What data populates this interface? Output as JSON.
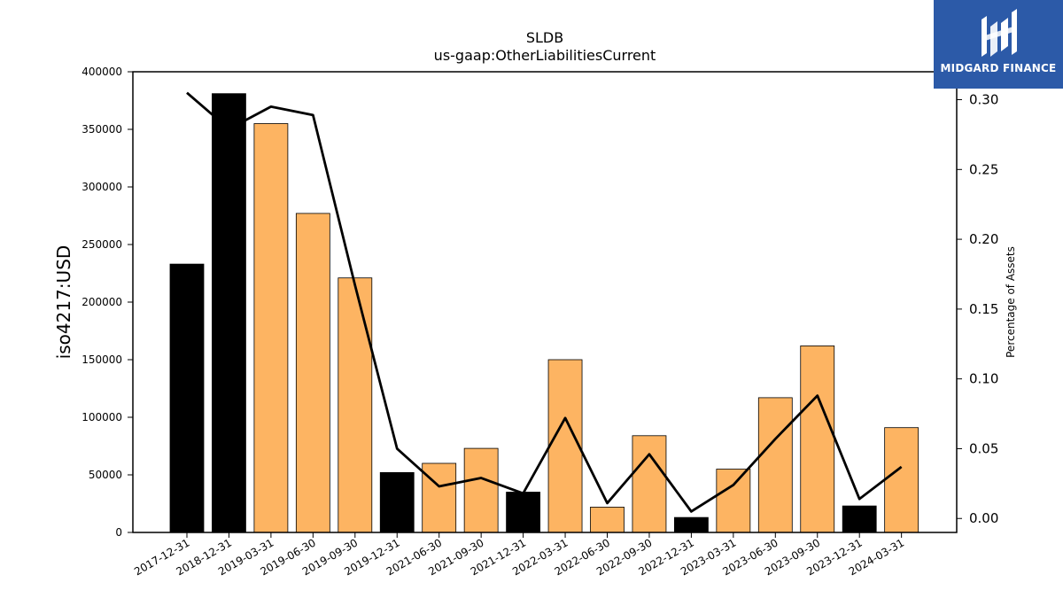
{
  "brand": {
    "name": "MIDGARD FINANCE",
    "logo_color": "#2c5aa8",
    "icon": "midgard-mark-icon"
  },
  "chart_data": {
    "type": "bar",
    "title": "SLDB",
    "subtitle": "us-gaap:OtherLiabilitiesCurrent",
    "ylabel": "iso4217:USD",
    "y2label": "Percentage of Assets",
    "ylim": [
      0,
      400000
    ],
    "y2lim": [
      -0.01,
      0.32
    ],
    "yticks": [
      "0",
      "50000",
      "100000",
      "150000",
      "200000",
      "250000",
      "300000",
      "350000",
      "400000"
    ],
    "y2ticks": [
      "0.00",
      "0.05",
      "0.10",
      "0.15",
      "0.20",
      "0.25",
      "0.30"
    ],
    "categories": [
      "2017-12-31",
      "2018-12-31",
      "2019-03-31",
      "2019-06-30",
      "2019-09-30",
      "2019-12-31",
      "2021-06-30",
      "2021-09-30",
      "2021-12-31",
      "2022-03-31",
      "2022-06-30",
      "2022-09-30",
      "2022-12-31",
      "2023-03-31",
      "2023-06-30",
      "2023-09-30",
      "2023-12-31",
      "2024-03-31"
    ],
    "values": [
      233000,
      381000,
      355000,
      277000,
      221000,
      52000,
      60000,
      73000,
      35000,
      150000,
      22000,
      84000,
      13000,
      55000,
      117000,
      162000,
      23000,
      91000
    ],
    "bar_colors": [
      "#000000",
      "#000000",
      "#fdb462",
      "#fdb462",
      "#fdb462",
      "#000000",
      "#fdb462",
      "#fdb462",
      "#000000",
      "#fdb462",
      "#fdb462",
      "#fdb462",
      "#000000",
      "#fdb462",
      "#fdb462",
      "#fdb462",
      "#000000",
      "#fdb462"
    ],
    "line_values": [
      0.305,
      0.279,
      0.295,
      0.289,
      0.167,
      0.05,
      0.023,
      0.029,
      0.018,
      0.072,
      0.011,
      0.046,
      0.005,
      0.024,
      0.057,
      0.088,
      0.014,
      0.037
    ],
    "line_color": "#000000",
    "grid": false
  }
}
